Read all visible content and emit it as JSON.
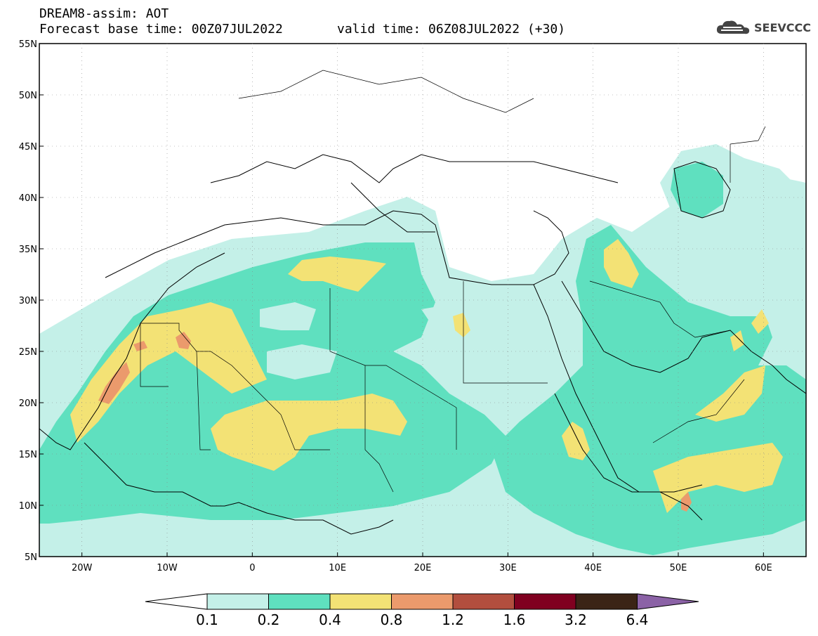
{
  "header": {
    "title": "DREAM8-assim: AOT",
    "base_time": "Forecast base time: 00Z07JUL2022",
    "valid_time": "valid time: 06Z08JUL2022 (+30)"
  },
  "logo": {
    "text": "SEEVCCC"
  },
  "axes": {
    "lat_labels": [
      "55N",
      "50N",
      "45N",
      "40N",
      "35N",
      "30N",
      "25N",
      "20N",
      "15N",
      "10N",
      "5N"
    ],
    "lon_labels": [
      "20W",
      "10W",
      "0",
      "10E",
      "20E",
      "30E",
      "40E",
      "50E",
      "60E"
    ],
    "lon_range": [
      -25,
      65
    ],
    "lat_range": [
      5,
      55
    ]
  },
  "colorbar": {
    "labels": [
      "0.1",
      "0.2",
      "0.4",
      "0.8",
      "1.2",
      "1.6",
      "3.2",
      "6.4"
    ],
    "colors": [
      "#c4f0e8",
      "#5fe0bf",
      "#f3e275",
      "#eb9a6c",
      "#b24e3e",
      "#800020",
      "#3b2416",
      "#8b62a6"
    ]
  },
  "fields": {
    "background": "#ffffff",
    "border_color": "#000000"
  }
}
